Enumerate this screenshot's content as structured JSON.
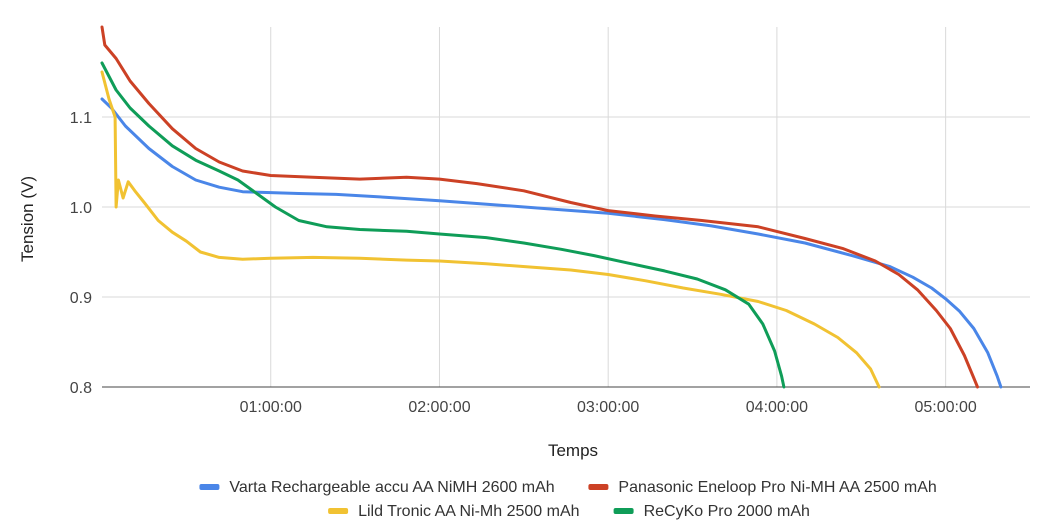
{
  "chart_data": {
    "type": "line",
    "title": "",
    "xlabel": "Temps",
    "ylabel": "Tension (V)",
    "xlim": [
      0,
      19800
    ],
    "ylim": [
      0.8,
      1.2
    ],
    "x_ticks": [
      {
        "value": 3600,
        "label": "01:00:00"
      },
      {
        "value": 7200,
        "label": "02:00:00"
      },
      {
        "value": 10800,
        "label": "03:00:00"
      },
      {
        "value": 14400,
        "label": "04:00:00"
      },
      {
        "value": 18000,
        "label": "05:00:00"
      }
    ],
    "y_ticks": [
      {
        "value": 0.8,
        "label": "0.8"
      },
      {
        "value": 0.9,
        "label": "0.9"
      },
      {
        "value": 1.0,
        "label": "1.0"
      },
      {
        "value": 1.1,
        "label": "1.1"
      }
    ],
    "grid": true,
    "legend_position": "bottom",
    "series": [
      {
        "name": "Varta Rechargeable accu AA NiMH 2600 mAh",
        "color": "#4a86e8",
        "points": [
          [
            0,
            1.12
          ],
          [
            200,
            1.11
          ],
          [
            500,
            1.09
          ],
          [
            1000,
            1.065
          ],
          [
            1500,
            1.045
          ],
          [
            2000,
            1.03
          ],
          [
            2500,
            1.022
          ],
          [
            3000,
            1.017
          ],
          [
            3600,
            1.016
          ],
          [
            4200,
            1.015
          ],
          [
            5000,
            1.014
          ],
          [
            6000,
            1.011
          ],
          [
            7200,
            1.007
          ],
          [
            8500,
            1.002
          ],
          [
            9500,
            0.998
          ],
          [
            10800,
            0.993
          ],
          [
            12000,
            0.986
          ],
          [
            13000,
            0.979
          ],
          [
            14000,
            0.97
          ],
          [
            15000,
            0.96
          ],
          [
            16000,
            0.946
          ],
          [
            16800,
            0.934
          ],
          [
            17300,
            0.922
          ],
          [
            17700,
            0.91
          ],
          [
            18000,
            0.898
          ],
          [
            18300,
            0.884
          ],
          [
            18600,
            0.865
          ],
          [
            18900,
            0.838
          ],
          [
            19100,
            0.812
          ],
          [
            19180,
            0.8
          ]
        ]
      },
      {
        "name": "Panasonic Eneloop Pro Ni-MH AA 2500 mAh",
        "color": "#cc4125",
        "points": [
          [
            0,
            1.2
          ],
          [
            60,
            1.18
          ],
          [
            300,
            1.165
          ],
          [
            600,
            1.14
          ],
          [
            1000,
            1.115
          ],
          [
            1500,
            1.087
          ],
          [
            2000,
            1.065
          ],
          [
            2500,
            1.05
          ],
          [
            3000,
            1.04
          ],
          [
            3600,
            1.035
          ],
          [
            4500,
            1.033
          ],
          [
            5500,
            1.031
          ],
          [
            6500,
            1.033
          ],
          [
            7200,
            1.031
          ],
          [
            8000,
            1.026
          ],
          [
            9000,
            1.018
          ],
          [
            10000,
            1.005
          ],
          [
            10800,
            0.996
          ],
          [
            11800,
            0.99
          ],
          [
            12800,
            0.985
          ],
          [
            14000,
            0.978
          ],
          [
            15000,
            0.965
          ],
          [
            15800,
            0.954
          ],
          [
            16500,
            0.94
          ],
          [
            17000,
            0.925
          ],
          [
            17400,
            0.908
          ],
          [
            17800,
            0.885
          ],
          [
            18100,
            0.865
          ],
          [
            18400,
            0.835
          ],
          [
            18600,
            0.81
          ],
          [
            18680,
            0.8
          ]
        ]
      },
      {
        "name": "Lild Tronic AA Ni-Mh 2500 mAh",
        "color": "#f1c232",
        "points": [
          [
            0,
            1.15
          ],
          [
            150,
            1.12
          ],
          [
            280,
            1.1
          ],
          [
            300,
            1.0
          ],
          [
            350,
            1.03
          ],
          [
            450,
            1.01
          ],
          [
            560,
            1.028
          ],
          [
            700,
            1.018
          ],
          [
            900,
            1.005
          ],
          [
            1200,
            0.985
          ],
          [
            1500,
            0.972
          ],
          [
            1800,
            0.962
          ],
          [
            2100,
            0.95
          ],
          [
            2500,
            0.944
          ],
          [
            3000,
            0.942
          ],
          [
            3600,
            0.943
          ],
          [
            4500,
            0.944
          ],
          [
            5500,
            0.943
          ],
          [
            6500,
            0.941
          ],
          [
            7200,
            0.94
          ],
          [
            8200,
            0.937
          ],
          [
            9200,
            0.933
          ],
          [
            10000,
            0.93
          ],
          [
            10800,
            0.925
          ],
          [
            11600,
            0.918
          ],
          [
            12400,
            0.91
          ],
          [
            13200,
            0.903
          ],
          [
            14000,
            0.895
          ],
          [
            14600,
            0.885
          ],
          [
            15200,
            0.87
          ],
          [
            15700,
            0.855
          ],
          [
            16100,
            0.838
          ],
          [
            16400,
            0.82
          ],
          [
            16580,
            0.8
          ]
        ]
      },
      {
        "name": "ReCyKo Pro 2000 mAh",
        "color": "#0f9d58",
        "points": [
          [
            0,
            1.16
          ],
          [
            300,
            1.13
          ],
          [
            600,
            1.11
          ],
          [
            1000,
            1.09
          ],
          [
            1500,
            1.068
          ],
          [
            2000,
            1.052
          ],
          [
            2500,
            1.04
          ],
          [
            2900,
            1.03
          ],
          [
            3300,
            1.015
          ],
          [
            3700,
            1.0
          ],
          [
            4200,
            0.985
          ],
          [
            4800,
            0.978
          ],
          [
            5500,
            0.975
          ],
          [
            6500,
            0.973
          ],
          [
            7200,
            0.97
          ],
          [
            8200,
            0.966
          ],
          [
            9000,
            0.96
          ],
          [
            9800,
            0.953
          ],
          [
            10500,
            0.946
          ],
          [
            11200,
            0.938
          ],
          [
            12000,
            0.929
          ],
          [
            12700,
            0.92
          ],
          [
            13300,
            0.908
          ],
          [
            13800,
            0.892
          ],
          [
            14100,
            0.87
          ],
          [
            14350,
            0.84
          ],
          [
            14500,
            0.812
          ],
          [
            14550,
            0.8
          ]
        ]
      }
    ]
  }
}
